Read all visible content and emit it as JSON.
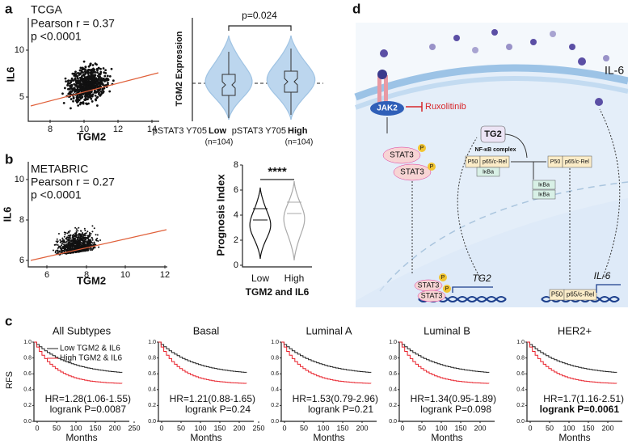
{
  "figure": {
    "a": {
      "label": "a",
      "scatter": {
        "cohort": "TCGA",
        "pearson": "Pearson r = 0.37",
        "p": "p <0.0001",
        "xlabel": "TGM2",
        "ylabel": "IL6",
        "xticks": [
          "8",
          "10",
          "12",
          "14"
        ],
        "yticks": [
          "10",
          "5"
        ]
      },
      "violin": {
        "ylabel": "TGM2 Expression",
        "pvalue": "p=0.024",
        "groups": [
          {
            "prefix": "pSTAT3 Y705",
            "level": "Low",
            "n": "(n=104)"
          },
          {
            "prefix": "pSTAT3 Y705",
            "level": "High",
            "n": "(n=104)"
          }
        ]
      }
    },
    "b": {
      "label": "b",
      "scatter": {
        "cohort": "METABRIC",
        "pearson": "Pearson r = 0.27",
        "p": "p <0.0001",
        "xlabel": "TGM2",
        "ylabel": "IL6",
        "xticks": [
          "6",
          "8",
          "10",
          "12"
        ],
        "yticks": [
          "10",
          "8",
          "6"
        ]
      },
      "violin": {
        "ylabel": "Prognosis Index",
        "signif": "****",
        "yticks": [
          "0",
          "2",
          "4",
          "6",
          "8"
        ],
        "categories": [
          "Low",
          "High"
        ],
        "xlabel": "TGM2 and IL6"
      }
    },
    "c": {
      "label": "c",
      "ylabel": "RFS",
      "yticks": [
        "0.0",
        "0.2",
        "0.4",
        "0.6",
        "0.8",
        "1.0"
      ],
      "legend": [
        "Low TGM2 & IL6",
        "High TGM2 & IL6"
      ],
      "plots": [
        {
          "title": "All Subtypes",
          "hr": "HR=1.28(1.06-1.55)",
          "logrank": "logrank P=0.0087",
          "xlabel": "Months",
          "xticks": [
            "0",
            "50",
            "100",
            "150",
            "200",
            "250"
          ]
        },
        {
          "title": "Basal",
          "hr": "HR=1.21(0.88-1.65)",
          "logrank": "logrank P=0.24",
          "xlabel": "Months",
          "xticks": [
            "0",
            "50",
            "100",
            "150",
            "200",
            "250"
          ]
        },
        {
          "title": "Luminal A",
          "hr": "HR=1.53(0.79-2.96)",
          "logrank": "logrank P=0.21",
          "xlabel": "Months",
          "xticks": [
            "0",
            "50",
            "100",
            "150",
            "200"
          ]
        },
        {
          "title": "Luminal B",
          "hr": "HR=1.34(0.95-1.89)",
          "logrank": "logrank P=0.098",
          "xlabel": "Months",
          "xticks": [
            "0",
            "50",
            "100",
            "150",
            "200"
          ]
        },
        {
          "title": "HER2+",
          "hr": "HR=1.7(1.16-2.51)",
          "logrank": "logrank P=0.0061",
          "xlabel": "Months",
          "xticks": [
            "0",
            "50",
            "100",
            "150",
            "200"
          ]
        }
      ]
    },
    "d": {
      "label": "d",
      "ligand": "IL-6",
      "jak2": "JAK2",
      "inhibitor": "Ruxolitinib",
      "stat3": "STAT3",
      "phospho": "P",
      "tg2": "TG2",
      "nfkb": "NF-κB complex",
      "p50": "P50",
      "p65": "p65/c-Rel",
      "ikba": "IκBa",
      "gene_tg2": "TG2",
      "gene_il6": "IL-6"
    }
  }
}
